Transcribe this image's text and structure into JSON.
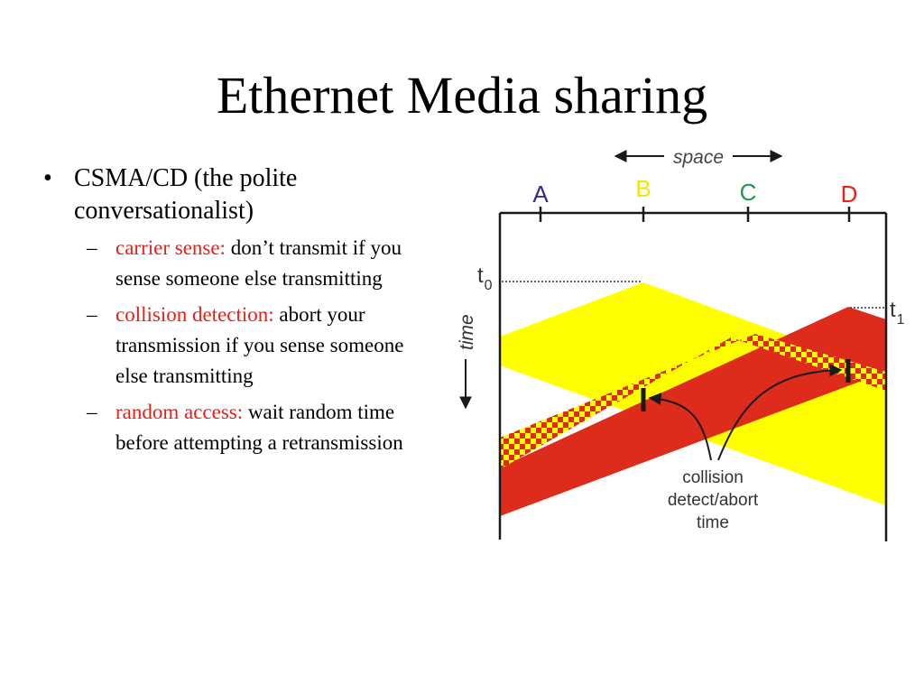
{
  "title": "Ethernet Media sharing",
  "bullet": "CSMA/CD (the polite conversationalist)",
  "subbullets": [
    {
      "term": "carrier sense:",
      "text": " don’t transmit if you sense someone else transmitting"
    },
    {
      "term": "collision detection:",
      "text": " abort your transmission if you sense someone else transmitting"
    },
    {
      "term": "random access:",
      "text": " wait random time before attempting a retransmission"
    }
  ],
  "diagram": {
    "space_label": "space",
    "time_label": "time",
    "nodes": [
      {
        "label": "A",
        "color": "#3a2a8a"
      },
      {
        "label": "B",
        "color": "#f2e600"
      },
      {
        "label": "C",
        "color": "#1a9a4a"
      },
      {
        "label": "D",
        "color": "#e8201a"
      }
    ],
    "t0": "t",
    "t0_sub": "0",
    "t1": "t",
    "t1_sub": "1",
    "collision_label": [
      "collision",
      "detect/abort",
      "time"
    ],
    "colors": {
      "yellow": "#ffff00",
      "red": "#dd2b1c",
      "line": "#1a1a1a"
    }
  }
}
